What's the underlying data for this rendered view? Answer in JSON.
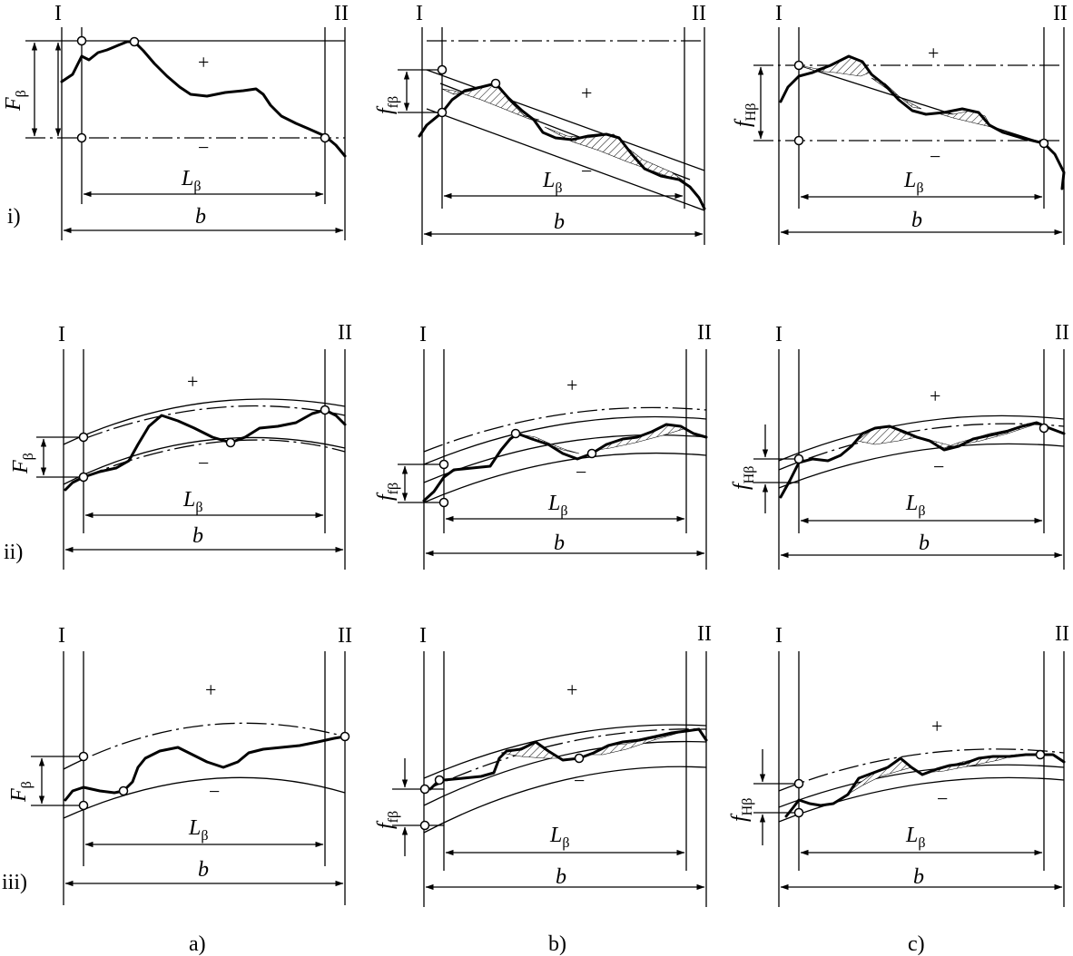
{
  "labels": {
    "section_start": "I",
    "section_end": "II",
    "plus": "+",
    "minus": "−",
    "L_main": "L",
    "L_sub": "β",
    "b": "b",
    "F_main": "F",
    "F_sub": "β",
    "ff_main": "f",
    "ff_sub": "fβ",
    "fH_main": "f",
    "fH_sub": "Hβ"
  },
  "rows": [
    "i)",
    "ii)",
    "iii)"
  ],
  "columns": [
    "a)",
    "b)",
    "c)"
  ]
}
